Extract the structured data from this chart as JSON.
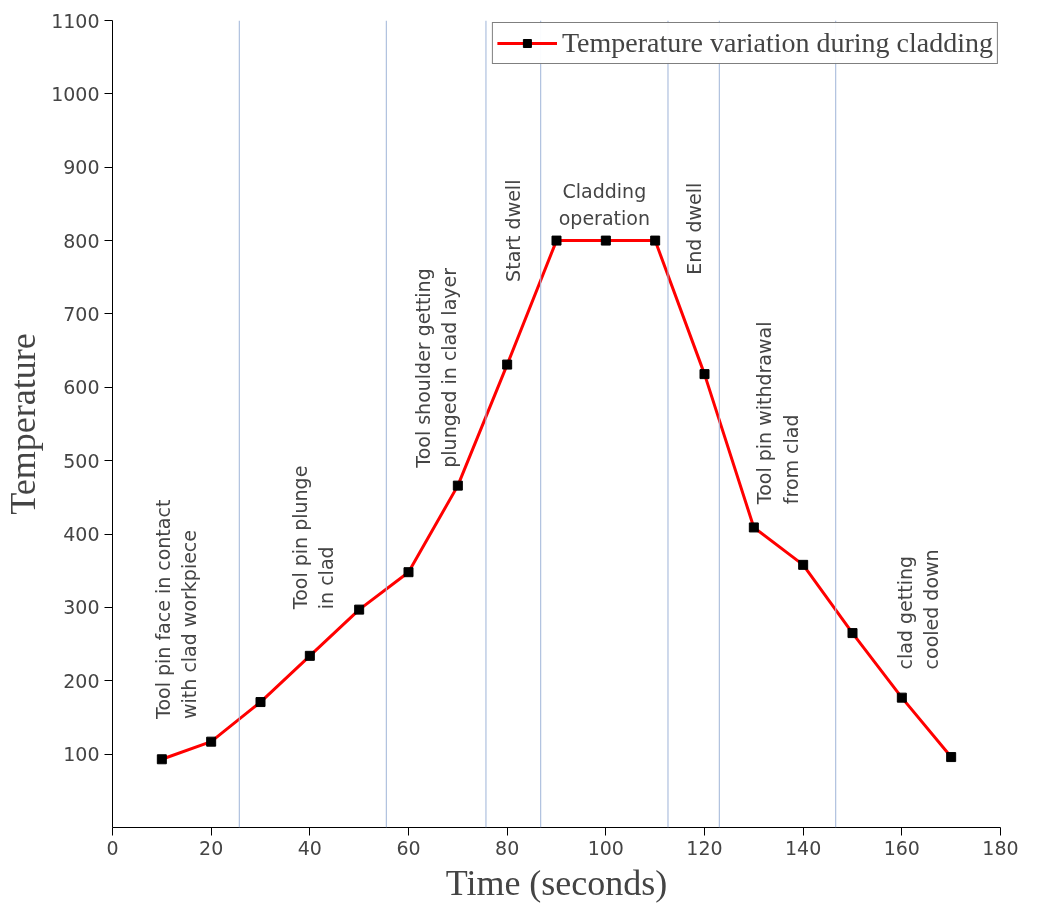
{
  "chart_data": {
    "type": "line",
    "xlabel": "Time (seconds)",
    "ylabel": "Temperature",
    "x": [
      10,
      20,
      30,
      40,
      50,
      60,
      70,
      80,
      90,
      100,
      110,
      120,
      130,
      140,
      150,
      160,
      170
    ],
    "series": [
      {
        "name": "Temperature variation during cladding",
        "color": "#ff0000",
        "values": [
          93,
          117,
          171,
          234,
          297,
          348,
          466,
          631,
          800,
          800,
          800,
          618,
          409,
          358,
          265,
          177,
          96
        ]
      }
    ],
    "xlim": [
      0,
      180
    ],
    "xticks": [
      0,
      20,
      40,
      60,
      80,
      100,
      120,
      140,
      160,
      180
    ],
    "ylim": [
      0,
      1100
    ],
    "yticks": [
      100,
      200,
      300,
      400,
      500,
      600,
      700,
      800,
      900,
      1000,
      1100
    ],
    "marker": "square",
    "line_style": "solid",
    "legend": "top right",
    "grid": false,
    "ref_lines": [
      {
        "axis": "x",
        "value": 25.7,
        "color": "#9fb4d8"
      },
      {
        "axis": "x",
        "value": 55.5,
        "color": "#9fb4d8"
      },
      {
        "axis": "x",
        "value": 75.7,
        "color": "#9fb4d8"
      },
      {
        "axis": "x",
        "value": 86.8,
        "color": "#9fb4d8"
      },
      {
        "axis": "x",
        "value": 112.6,
        "color": "#9fb4d8"
      },
      {
        "axis": "x",
        "value": 123,
        "color": "#9fb4d8"
      },
      {
        "axis": "x",
        "value": 146.6,
        "color": "#9fb4d8"
      }
    ],
    "annotations": [
      "Tool pin face in contact\nwith clad workpiece",
      "Tool pin plunge\nin clad",
      "Tool shoulder getting\nplunged in clad layer",
      "Start dwell",
      "Cladding\noperation",
      "End dwell",
      "Tool pin withdrawal\nfrom clad",
      "clad getting\ncooled down"
    ]
  }
}
